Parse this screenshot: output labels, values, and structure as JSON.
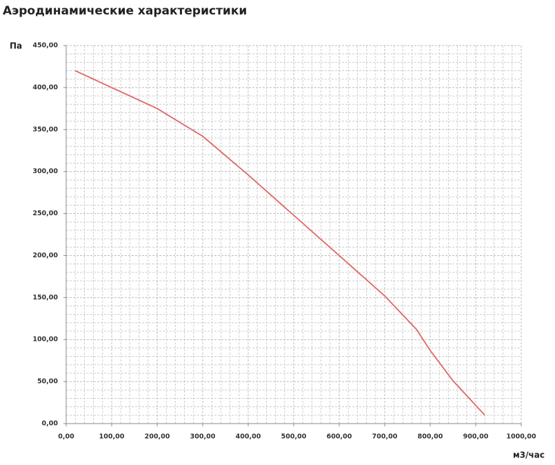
{
  "chart_data": {
    "type": "line",
    "title": "Аэродинамические характеристики",
    "y_label": "Па",
    "x_label": "м3/час",
    "x": [
      20,
      100,
      200,
      300,
      400,
      500,
      600,
      700,
      770,
      800,
      850,
      920
    ],
    "series": [
      {
        "color": "#e06666",
        "values": [
          420,
          400,
          375,
          342,
          296,
          248,
          200,
          152,
          112,
          87,
          51,
          10
        ]
      }
    ],
    "xlim": [
      0,
      1000
    ],
    "xticks": [
      {
        "value": 0,
        "label": "0,00"
      },
      {
        "value": 100,
        "label": "100,00"
      },
      {
        "value": 200,
        "label": "200,00"
      },
      {
        "value": 300,
        "label": "300,00"
      },
      {
        "value": 400,
        "label": "400,00"
      },
      {
        "value": 500,
        "label": "500,00"
      },
      {
        "value": 600,
        "label": "600,00"
      },
      {
        "value": 700,
        "label": "700,00"
      },
      {
        "value": 800,
        "label": "800,00"
      },
      {
        "value": 900,
        "label": "900,00"
      },
      {
        "value": 1000,
        "label": "1000,00"
      }
    ],
    "ylim": [
      0,
      450
    ],
    "yticks": [
      {
        "value": 0,
        "label": "0,00"
      },
      {
        "value": 50,
        "label": "50,00"
      },
      {
        "value": 100,
        "label": "100,00"
      },
      {
        "value": 150,
        "label": "150,00"
      },
      {
        "value": 200,
        "label": "200,00"
      },
      {
        "value": 250,
        "label": "250,00"
      },
      {
        "value": 300,
        "label": "300,00"
      },
      {
        "value": 350,
        "label": "350,00"
      },
      {
        "value": 400,
        "label": "400,00"
      },
      {
        "value": 450,
        "label": "450,00"
      }
    ],
    "grid": true
  }
}
